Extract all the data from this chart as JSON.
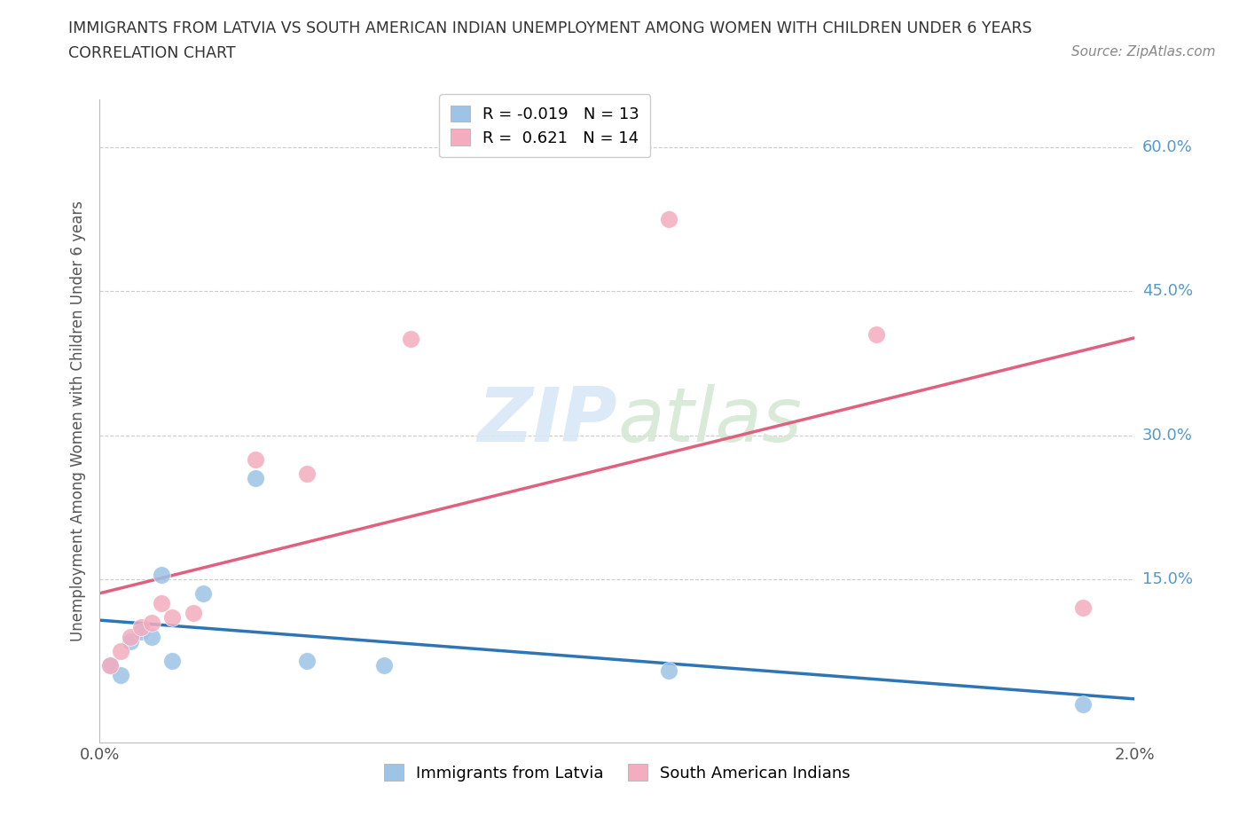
{
  "title_line1": "IMMIGRANTS FROM LATVIA VS SOUTH AMERICAN INDIAN UNEMPLOYMENT AMONG WOMEN WITH CHILDREN UNDER 6 YEARS",
  "title_line2": "CORRELATION CHART",
  "source": "Source: ZipAtlas.com",
  "ylabel": "Unemployment Among Women with Children Under 6 years",
  "xlim": [
    0.0,
    0.02
  ],
  "ylim": [
    -0.02,
    0.65
  ],
  "xticks": [
    0.0,
    0.004,
    0.008,
    0.012,
    0.016,
    0.02
  ],
  "xtick_labels": [
    "0.0%",
    "",
    "",
    "",
    "",
    "2.0%"
  ],
  "ytick_positions": [
    0.15,
    0.3,
    0.45,
    0.6
  ],
  "ytick_labels": [
    "15.0%",
    "30.0%",
    "45.0%",
    "60.0%"
  ],
  "latvia_x": [
    0.0002,
    0.0004,
    0.0006,
    0.0008,
    0.001,
    0.0012,
    0.0014,
    0.002,
    0.003,
    0.004,
    0.0055,
    0.011,
    0.019
  ],
  "latvia_y": [
    0.06,
    0.05,
    0.085,
    0.095,
    0.09,
    0.155,
    0.065,
    0.135,
    0.255,
    0.065,
    0.06,
    0.055,
    0.02
  ],
  "sa_indian_x": [
    0.0002,
    0.0004,
    0.0006,
    0.0008,
    0.001,
    0.0012,
    0.0014,
    0.0018,
    0.003,
    0.004,
    0.006,
    0.011,
    0.015,
    0.019
  ],
  "sa_indian_y": [
    0.06,
    0.075,
    0.09,
    0.1,
    0.105,
    0.125,
    0.11,
    0.115,
    0.275,
    0.26,
    0.4,
    0.525,
    0.405,
    0.12
  ],
  "latvia_color": "#9DC3E6",
  "sa_indian_color": "#F4ACBE",
  "latvia_line_color": "#2E75B6",
  "sa_indian_line_color": "#E06080",
  "latvia_R": -0.019,
  "latvia_N": 13,
  "sa_indian_R": 0.621,
  "sa_indian_N": 14,
  "marker_size": 200,
  "watermark_zip": "ZIP",
  "watermark_atlas": "atlas",
  "background_color": "#FFFFFF",
  "grid_color": "#CCCCCC"
}
